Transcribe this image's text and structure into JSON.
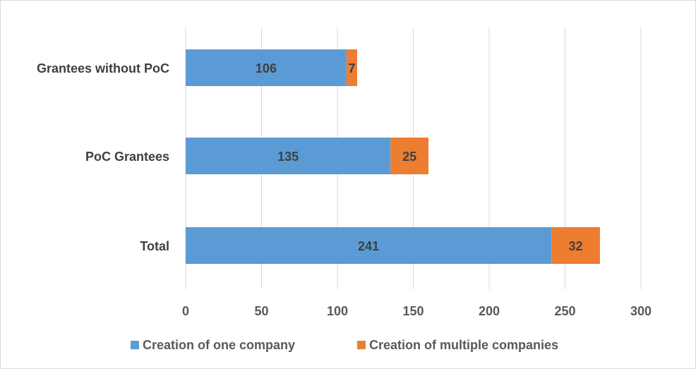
{
  "chart_data": {
    "type": "bar",
    "orientation": "horizontal",
    "stacked": true,
    "title": "",
    "xlabel": "",
    "ylabel": "",
    "categories": [
      "Grantees without PoC",
      "PoC Grantees",
      "Total"
    ],
    "series": [
      {
        "name": "Creation of one company",
        "values": [
          106,
          135,
          241
        ],
        "color": "#5B9BD5"
      },
      {
        "name": "Creation of multiple companies",
        "values": [
          7,
          25,
          32
        ],
        "color": "#ED7D31"
      }
    ],
    "xlim": [
      0,
      300
    ],
    "xticks": [
      0,
      50,
      100,
      150,
      200,
      250,
      300
    ],
    "grid": true,
    "legend_position": "bottom"
  }
}
